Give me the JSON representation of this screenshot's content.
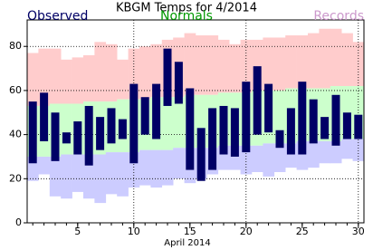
{
  "chart_data": {
    "type": "range",
    "title": "KBGM Temps for 4/2014",
    "xlabel": "April 2014",
    "x": [
      1,
      2,
      3,
      4,
      5,
      6,
      7,
      8,
      9,
      10,
      11,
      12,
      13,
      14,
      15,
      16,
      17,
      18,
      19,
      20,
      21,
      22,
      23,
      24,
      25,
      26,
      27,
      28,
      29,
      30
    ],
    "xlim": [
      0.5,
      30.5
    ],
    "xticks": [
      5,
      10,
      15,
      20,
      25,
      30
    ],
    "xgrid": [
      10,
      20,
      30
    ],
    "ylim": [
      0,
      92
    ],
    "yticks": [
      0,
      20,
      40,
      60,
      80
    ],
    "grid": true,
    "series": [
      {
        "name": "Observed",
        "color": "#000066",
        "high": [
          55,
          59,
          50,
          41,
          46,
          53,
          48,
          52,
          47,
          63,
          57,
          63,
          79,
          73,
          61,
          43,
          52,
          53,
          52,
          64,
          71,
          63,
          42,
          52,
          64,
          56,
          48,
          58,
          50,
          49
        ],
        "low": [
          27,
          37,
          28,
          36,
          31,
          26,
          33,
          36,
          38,
          27,
          40,
          38,
          53,
          54,
          24,
          19,
          24,
          31,
          30,
          32,
          40,
          41,
          34,
          31,
          31,
          36,
          38,
          35,
          38,
          38
        ]
      },
      {
        "name": "Normals",
        "color": "#ccffcc",
        "high": [
          53,
          53,
          54,
          54,
          54,
          55,
          55,
          55,
          56,
          56,
          56,
          57,
          57,
          57,
          58,
          58,
          58,
          59,
          59,
          59,
          60,
          60,
          60,
          61,
          61,
          61,
          61,
          62,
          62,
          62
        ],
        "low": [
          30,
          30,
          30,
          31,
          31,
          31,
          31,
          32,
          32,
          32,
          33,
          33,
          33,
          34,
          34,
          34,
          34,
          35,
          35,
          35,
          35,
          36,
          36,
          36,
          37,
          37,
          37,
          37,
          38,
          38
        ]
      },
      {
        "name": "Records",
        "color": "#cc99cc",
        "colors": [
          "#ffcccc",
          "#ccccff"
        ],
        "high": [
          77,
          79,
          79,
          74,
          75,
          76,
          82,
          81,
          74,
          79,
          80,
          81,
          83,
          84,
          86,
          85,
          85,
          83,
          81,
          83,
          83,
          84,
          84,
          85,
          85,
          86,
          88,
          88,
          86,
          82
        ],
        "low": [
          19,
          22,
          12,
          11,
          14,
          11,
          9,
          13,
          12,
          16,
          17,
          16,
          17,
          20,
          18,
          20,
          22,
          24,
          24,
          22,
          23,
          21,
          23,
          25,
          24,
          25,
          27,
          27,
          29,
          28
        ]
      }
    ]
  }
}
